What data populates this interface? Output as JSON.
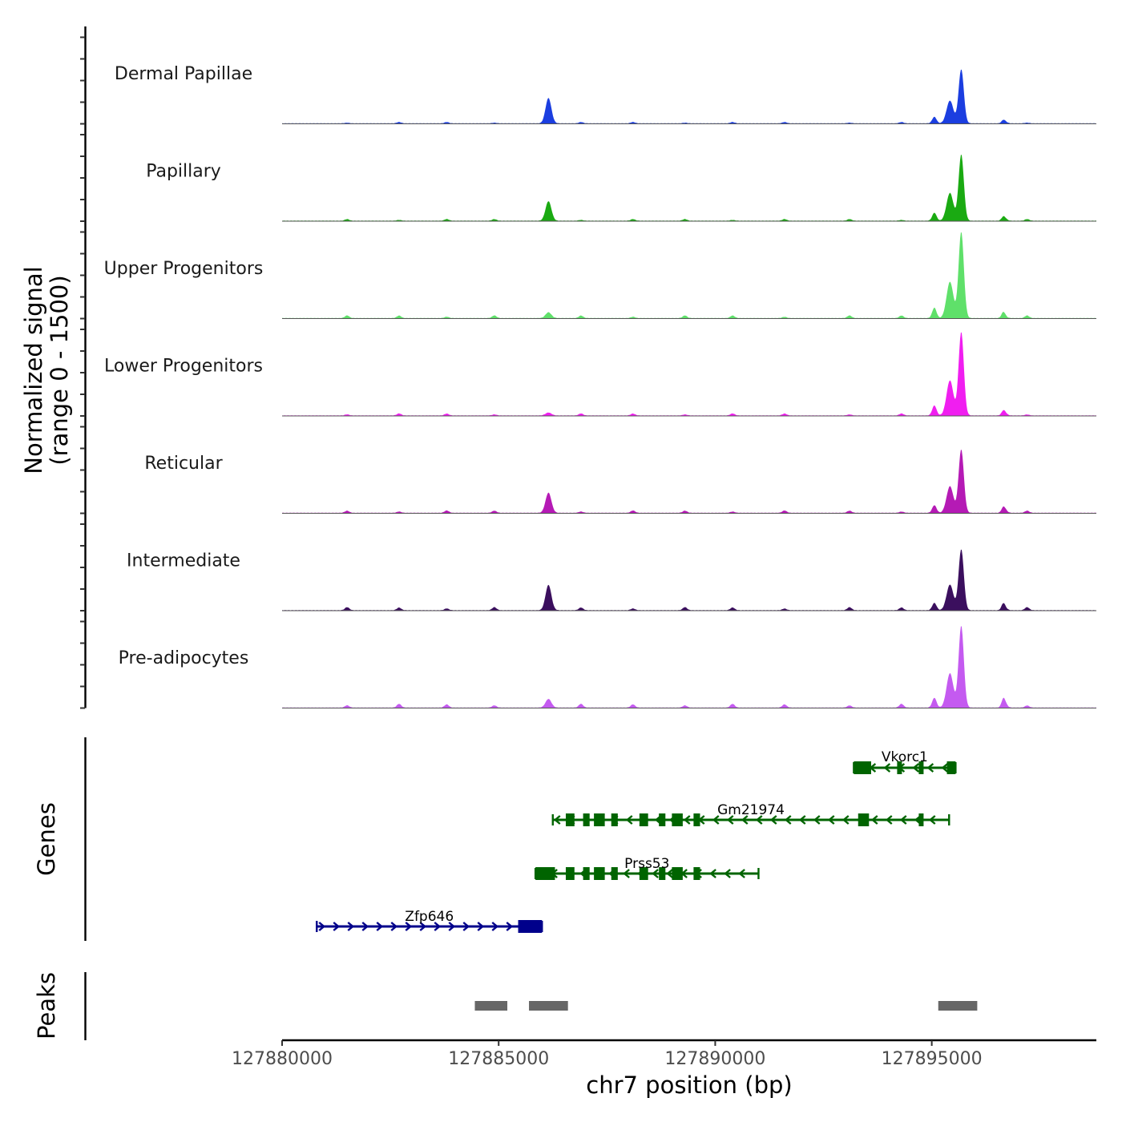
{
  "chart_data": {
    "type": "area",
    "title": "",
    "xlabel": "chr7 position (bp)",
    "ylabel_line1": "Normalized signal",
    "ylabel_line2": "(range 0 - 1500)",
    "genes_axis_label": "Genes",
    "peaks_axis_label": "Peaks",
    "xlim": [
      127880000,
      127898800
    ],
    "ylim": [
      0,
      1500
    ],
    "x_ticks": [
      127880000,
      127885000,
      127890000,
      127895000
    ],
    "x_tick_labels": [
      "127880000",
      "127885000",
      "127890000",
      "127895000"
    ],
    "peak_positions": [
      127886150,
      127895680
    ],
    "tracks": [
      {
        "name": "Dermal Papillae",
        "color": "#1b3ee0",
        "peaks": [
          440,
          940
        ],
        "small": 40
      },
      {
        "name": "Papillary",
        "color": "#1aaa12",
        "peaks": [
          340,
          1150
        ],
        "small": 50
      },
      {
        "name": "Upper Progenitors",
        "color": "#5fe06a",
        "peaks": [
          100,
          1500
        ],
        "small": 80
      },
      {
        "name": "Lower Progenitors",
        "color": "#f01ef0",
        "peaks": [
          50,
          1450
        ],
        "small": 60
      },
      {
        "name": "Reticular",
        "color": "#b51ab5",
        "peaks": [
          350,
          1100
        ],
        "small": 70
      },
      {
        "name": "Intermediate",
        "color": "#3b0f5e",
        "peaks": [
          440,
          1060
        ],
        "small": 90
      },
      {
        "name": "Pre-adipocytes",
        "color": "#c45af0",
        "peaks": [
          150,
          1420
        ],
        "small": 110
      }
    ],
    "genes": [
      {
        "name": "Vkorc1",
        "strand": "-",
        "start": 127893200,
        "end": 127895550,
        "color": "#006400",
        "exons": [
          [
            127893200,
            127893600
          ],
          [
            127894200,
            127894300
          ],
          [
            127894700,
            127894800
          ],
          [
            127895350,
            127895550
          ]
        ]
      },
      {
        "name": "Gm21974",
        "strand": "-",
        "start": 127886250,
        "end": 127895400,
        "color": "#006400",
        "exons": [
          [
            127886550,
            127886750
          ],
          [
            127886950,
            127887100
          ],
          [
            127887200,
            127887450
          ],
          [
            127887600,
            127887750
          ],
          [
            127888250,
            127888450
          ],
          [
            127888700,
            127888850
          ],
          [
            127889000,
            127889250
          ],
          [
            127889500,
            127889650
          ],
          [
            127893300,
            127893550
          ],
          [
            127894700,
            127894800
          ]
        ]
      },
      {
        "name": "Prss53",
        "strand": "-",
        "start": 127885850,
        "end": 127891000,
        "color": "#006400",
        "exons": [
          [
            127885850,
            127886300
          ],
          [
            127886550,
            127886750
          ],
          [
            127886950,
            127887100
          ],
          [
            127887200,
            127887450
          ],
          [
            127887600,
            127887750
          ],
          [
            127888250,
            127888450
          ],
          [
            127888700,
            127888850
          ],
          [
            127889000,
            127889250
          ],
          [
            127889500,
            127889650
          ]
        ]
      },
      {
        "name": "Zfp646",
        "strand": "+",
        "start": 127880800,
        "end": 127886000,
        "color": "#00008b",
        "exons": [
          [
            127885450,
            127886000
          ]
        ]
      }
    ],
    "peak_regions": [
      [
        127884450,
        127885200
      ],
      [
        127885700,
        127886600
      ],
      [
        127895150,
        127896050
      ]
    ]
  }
}
